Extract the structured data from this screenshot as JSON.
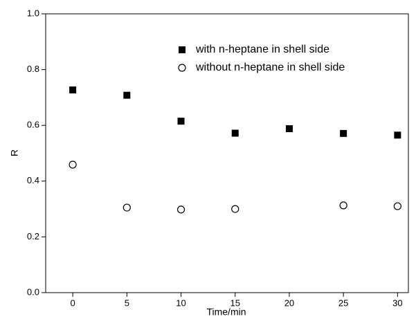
{
  "chart_data": {
    "type": "scatter",
    "x_label": "Time/min",
    "y_label": "R",
    "xlim": [
      -2.5,
      31
    ],
    "ylim": [
      0,
      1
    ],
    "xticks": [
      0,
      5,
      10,
      15,
      20,
      25,
      30
    ],
    "yticks": [
      {
        "value": 0,
        "label": "0.0"
      },
      {
        "value": 0.2,
        "label": "0.2"
      },
      {
        "value": 0.4,
        "label": "0.4"
      },
      {
        "value": 0.6,
        "label": "0.6"
      },
      {
        "value": 0.8,
        "label": "0.8"
      },
      {
        "value": 1,
        "label": "1.0"
      }
    ],
    "series": [
      {
        "name": "with n-heptane in shell side",
        "marker": "square",
        "color": "#000000",
        "x": [
          0,
          5,
          10,
          15,
          20,
          25,
          30
        ],
        "values": [
          0.727,
          0.708,
          0.615,
          0.572,
          0.588,
          0.571,
          0.565
        ]
      },
      {
        "name": "without n-heptane in shell side",
        "marker": "circle",
        "color": "#000000",
        "x": [
          0,
          5,
          10,
          15,
          25,
          30
        ],
        "values": [
          0.459,
          0.305,
          0.298,
          0.3,
          0.313,
          0.31
        ]
      }
    ]
  }
}
